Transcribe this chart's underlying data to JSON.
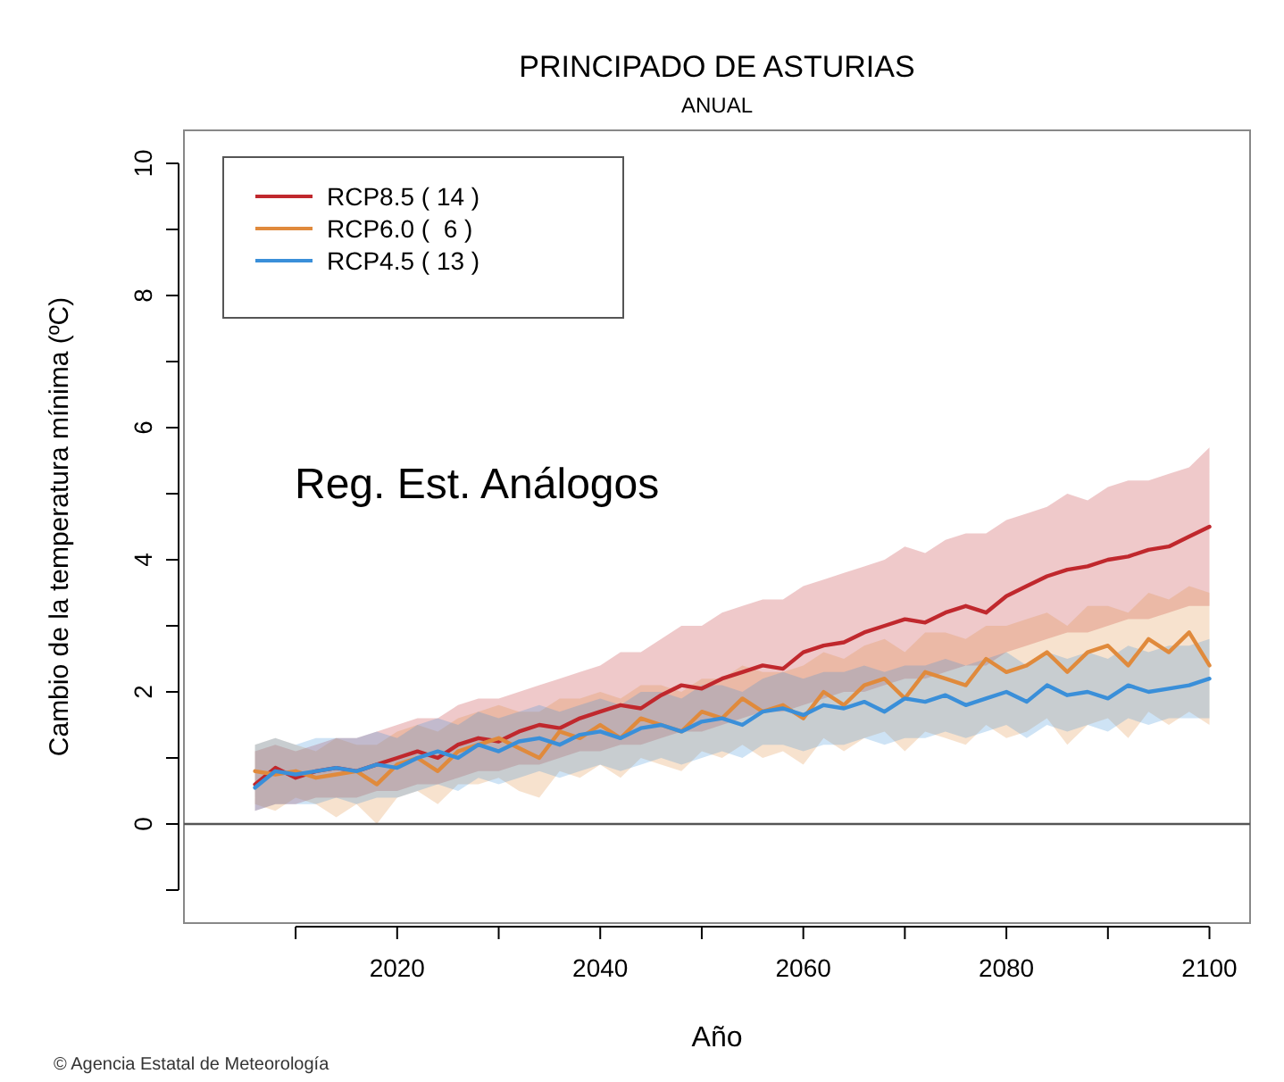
{
  "chart_data": {
    "type": "line",
    "title": "PRINCIPADO DE ASTURIAS",
    "subtitle": "ANUAL",
    "xlabel": "Año",
    "ylabel": "Cambio de la temperatura mínima (ºC)",
    "annotations": [
      "Reg. Est. Análogos",
      "© Agencia Estatal de Meteorología"
    ],
    "x": [
      2006,
      2008,
      2010,
      2012,
      2014,
      2016,
      2018,
      2020,
      2022,
      2024,
      2026,
      2028,
      2030,
      2032,
      2034,
      2036,
      2038,
      2040,
      2042,
      2044,
      2046,
      2048,
      2050,
      2052,
      2054,
      2056,
      2058,
      2060,
      2062,
      2064,
      2066,
      2068,
      2070,
      2072,
      2074,
      2076,
      2078,
      2080,
      2082,
      2084,
      2086,
      2088,
      2090,
      2092,
      2094,
      2096,
      2098,
      2100
    ],
    "series": [
      {
        "name": "RCP8.5 ( 14 )",
        "color": "#c0282d",
        "values": [
          0.6,
          0.85,
          0.7,
          0.8,
          0.85,
          0.8,
          0.9,
          1.0,
          1.1,
          1.0,
          1.2,
          1.3,
          1.25,
          1.4,
          1.5,
          1.45,
          1.6,
          1.7,
          1.8,
          1.75,
          1.95,
          2.1,
          2.05,
          2.2,
          2.3,
          2.4,
          2.35,
          2.6,
          2.7,
          2.75,
          2.9,
          3.0,
          3.1,
          3.05,
          3.2,
          3.3,
          3.2,
          3.45,
          3.6,
          3.75,
          3.85,
          3.9,
          4.0,
          4.05,
          4.15,
          4.2,
          4.35,
          4.5
        ],
        "upper": [
          1.1,
          1.2,
          1.1,
          1.2,
          1.3,
          1.3,
          1.4,
          1.5,
          1.6,
          1.6,
          1.8,
          1.9,
          1.9,
          2.0,
          2.1,
          2.2,
          2.3,
          2.4,
          2.6,
          2.6,
          2.8,
          3.0,
          3.0,
          3.2,
          3.3,
          3.4,
          3.4,
          3.6,
          3.7,
          3.8,
          3.9,
          4.0,
          4.2,
          4.1,
          4.3,
          4.4,
          4.4,
          4.6,
          4.7,
          4.8,
          5.0,
          4.9,
          5.1,
          5.2,
          5.2,
          5.3,
          5.4,
          5.7
        ],
        "lower": [
          0.2,
          0.3,
          0.3,
          0.4,
          0.4,
          0.4,
          0.5,
          0.5,
          0.6,
          0.6,
          0.7,
          0.8,
          0.8,
          0.9,
          0.9,
          1.0,
          1.1,
          1.1,
          1.2,
          1.2,
          1.3,
          1.4,
          1.4,
          1.5,
          1.6,
          1.7,
          1.7,
          1.8,
          1.9,
          2.0,
          2.0,
          2.1,
          2.2,
          2.2,
          2.3,
          2.4,
          2.4,
          2.6,
          2.7,
          2.8,
          2.9,
          2.9,
          3.0,
          3.1,
          3.1,
          3.2,
          3.3,
          3.3
        ]
      },
      {
        "name": "RCP6.0 (  6 )",
        "color": "#e08a3c",
        "values": [
          0.8,
          0.75,
          0.8,
          0.7,
          0.75,
          0.8,
          0.6,
          0.9,
          1.0,
          0.8,
          1.1,
          1.2,
          1.3,
          1.15,
          1.0,
          1.4,
          1.3,
          1.5,
          1.3,
          1.6,
          1.5,
          1.4,
          1.7,
          1.6,
          1.9,
          1.7,
          1.8,
          1.6,
          2.0,
          1.8,
          2.1,
          2.2,
          1.9,
          2.3,
          2.2,
          2.1,
          2.5,
          2.3,
          2.4,
          2.6,
          2.3,
          2.6,
          2.7,
          2.4,
          2.8,
          2.6,
          2.9,
          2.4
        ],
        "upper": [
          1.2,
          1.3,
          1.2,
          1.1,
          1.3,
          1.2,
          1.2,
          1.4,
          1.5,
          1.4,
          1.6,
          1.7,
          1.8,
          1.7,
          1.7,
          1.9,
          1.9,
          2.0,
          1.9,
          2.1,
          2.1,
          2.0,
          2.2,
          2.2,
          2.4,
          2.3,
          2.3,
          2.4,
          2.6,
          2.5,
          2.7,
          2.8,
          2.6,
          2.9,
          2.9,
          2.8,
          3.0,
          3.0,
          3.1,
          3.2,
          3.0,
          3.3,
          3.3,
          3.2,
          3.5,
          3.4,
          3.6,
          3.5
        ],
        "lower": [
          0.3,
          0.2,
          0.4,
          0.3,
          0.1,
          0.3,
          0.0,
          0.4,
          0.5,
          0.3,
          0.6,
          0.6,
          0.7,
          0.5,
          0.4,
          0.8,
          0.7,
          0.9,
          0.7,
          1.0,
          0.9,
          0.8,
          1.1,
          1.0,
          1.2,
          1.0,
          1.1,
          0.9,
          1.3,
          1.1,
          1.3,
          1.4,
          1.1,
          1.4,
          1.3,
          1.2,
          1.5,
          1.3,
          1.4,
          1.6,
          1.2,
          1.5,
          1.6,
          1.3,
          1.7,
          1.5,
          1.7,
          1.5
        ]
      },
      {
        "name": "RCP4.5 ( 13 )",
        "color": "#3a8fd9",
        "values": [
          0.55,
          0.8,
          0.75,
          0.8,
          0.85,
          0.8,
          0.9,
          0.85,
          1.0,
          1.1,
          1.0,
          1.2,
          1.1,
          1.25,
          1.3,
          1.2,
          1.35,
          1.4,
          1.3,
          1.45,
          1.5,
          1.4,
          1.55,
          1.6,
          1.5,
          1.7,
          1.75,
          1.65,
          1.8,
          1.75,
          1.85,
          1.7,
          1.9,
          1.85,
          1.95,
          1.8,
          1.9,
          2.0,
          1.85,
          2.1,
          1.95,
          2.0,
          1.9,
          2.1,
          2.0,
          2.05,
          2.1,
          2.2
        ],
        "upper": [
          1.2,
          1.3,
          1.2,
          1.3,
          1.3,
          1.3,
          1.4,
          1.3,
          1.5,
          1.6,
          1.5,
          1.7,
          1.6,
          1.7,
          1.8,
          1.7,
          1.8,
          1.9,
          1.8,
          2.0,
          2.0,
          1.9,
          2.1,
          2.1,
          2.0,
          2.2,
          2.3,
          2.2,
          2.3,
          2.3,
          2.4,
          2.3,
          2.4,
          2.4,
          2.5,
          2.4,
          2.5,
          2.6,
          2.4,
          2.6,
          2.5,
          2.6,
          2.5,
          2.7,
          2.6,
          2.7,
          2.7,
          2.8
        ],
        "lower": [
          0.2,
          0.3,
          0.3,
          0.3,
          0.4,
          0.3,
          0.4,
          0.4,
          0.5,
          0.6,
          0.5,
          0.7,
          0.6,
          0.7,
          0.8,
          0.7,
          0.8,
          0.9,
          0.8,
          0.9,
          1.0,
          0.9,
          1.0,
          1.1,
          1.0,
          1.2,
          1.2,
          1.1,
          1.2,
          1.2,
          1.3,
          1.2,
          1.3,
          1.3,
          1.4,
          1.3,
          1.4,
          1.5,
          1.3,
          1.5,
          1.4,
          1.5,
          1.4,
          1.6,
          1.5,
          1.6,
          1.6,
          1.6
        ]
      }
    ],
    "xlim": [
      1999,
      2104
    ],
    "ylim": [
      -1.5,
      10.5
    ],
    "xticks": [
      {
        "value": 2010,
        "label": null
      },
      2020,
      {
        "value": 2030,
        "label": null
      },
      2040,
      {
        "value": 2050,
        "label": null
      },
      2060,
      {
        "value": 2070,
        "label": null
      },
      2080,
      {
        "value": 2090,
        "label": null
      },
      2100
    ],
    "yticks": [
      {
        "value": -1,
        "label": null
      },
      0,
      {
        "value": 1,
        "label": null
      },
      2,
      {
        "value": 3,
        "label": null
      },
      4,
      {
        "value": 5,
        "label": null
      },
      6,
      {
        "value": 7,
        "label": null
      },
      8,
      {
        "value": 9,
        "label": null
      },
      10
    ],
    "ref_lines": [
      {
        "axis": "y",
        "value": 0,
        "color": "#555555"
      }
    ],
    "legend": "top left",
    "grid": false,
    "line_style": "solid",
    "marker": "none"
  }
}
